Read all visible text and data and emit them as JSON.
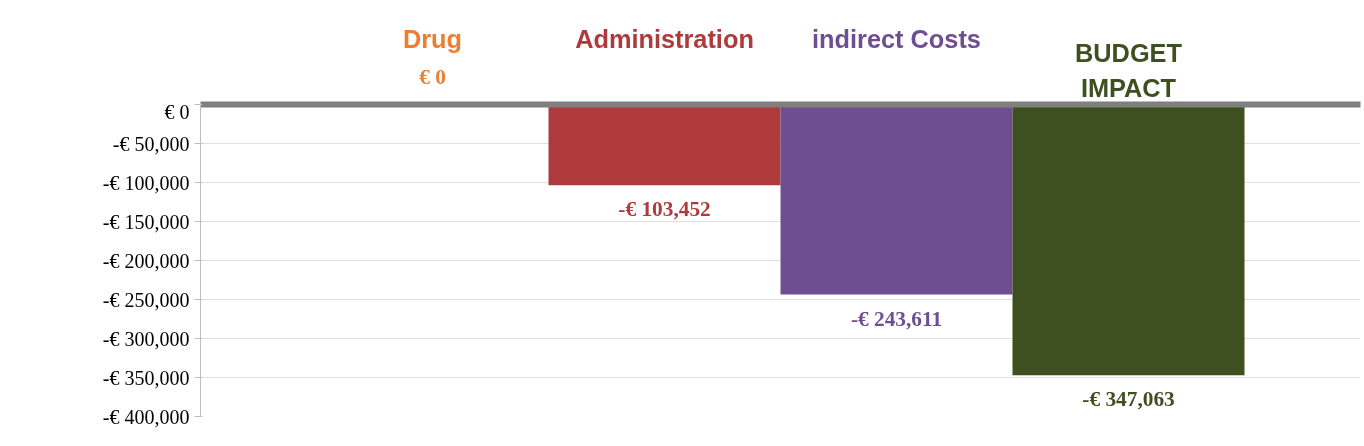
{
  "chart_data": {
    "type": "bar",
    "categories": [
      "Drug",
      "Administration",
      "indirect Costs",
      "BUDGET\nIMPACT"
    ],
    "values": [
      0,
      -103452,
      -243611,
      -347063
    ],
    "colors": [
      "#ed7d31",
      "#ae3a3c",
      "#6e4e91",
      "#3e4f20"
    ],
    "value_labels": [
      "€ 0",
      "-€ 103,452",
      "-€ 243,611",
      "-€ 347,063"
    ],
    "ylim": [
      -400000,
      0
    ],
    "yticks": [
      {
        "value": 0,
        "label": "€ 0"
      },
      {
        "value": -50000,
        "label": "-€ 50,000"
      },
      {
        "value": -100000,
        "label": "-€ 100,000"
      },
      {
        "value": -150000,
        "label": "-€ 150,000"
      },
      {
        "value": -200000,
        "label": "-€ 200,000"
      },
      {
        "value": -250000,
        "label": "-€ 250,000"
      },
      {
        "value": -300000,
        "label": "-€ 300,000"
      },
      {
        "value": -350000,
        "label": "-€ 350,000"
      },
      {
        "value": -400000,
        "label": "-€ 400,000"
      }
    ],
    "grid": "y"
  }
}
